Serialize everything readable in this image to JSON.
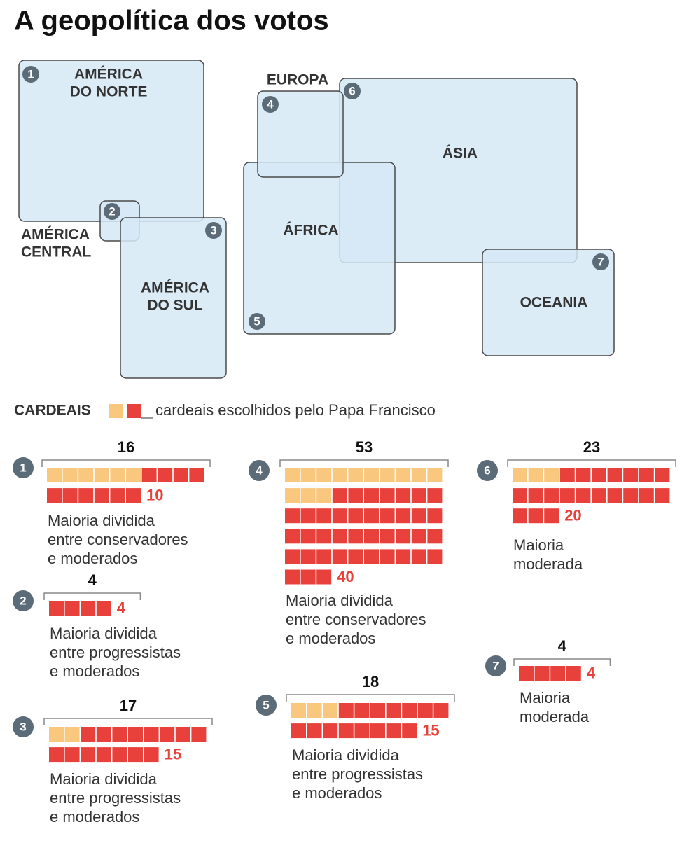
{
  "title": "A geopolítica dos votos",
  "map": {
    "regions": [
      {
        "number": 1,
        "label": [
          "AMÉRICA",
          "DO NORTE"
        ]
      },
      {
        "number": 2,
        "label": [
          "AMÉRICA",
          "CENTRAL"
        ]
      },
      {
        "number": 3,
        "label": [
          "AMÉRICA",
          "DO SUL"
        ]
      },
      {
        "number": 4,
        "label": [
          "EUROPA"
        ]
      },
      {
        "number": 5,
        "label": [
          "ÁFRICA"
        ]
      },
      {
        "number": 6,
        "label": [
          "ÁSIA"
        ]
      },
      {
        "number": 7,
        "label": [
          "OCEANIA"
        ]
      }
    ]
  },
  "legend": {
    "label": "CARDEAIS",
    "text": "cardeais escolhidos pelo Papa Francisco"
  },
  "blocks": [
    {
      "number": 1,
      "total": 16,
      "francis": 10,
      "description": [
        "Maioria dividida",
        "entre conservadores",
        "e moderados"
      ]
    },
    {
      "number": 2,
      "total": 4,
      "francis": 4,
      "description": [
        "Maioria dividida",
        "entre progressistas",
        "e moderados"
      ]
    },
    {
      "number": 3,
      "total": 17,
      "francis": 15,
      "description": [
        "Maioria dividida",
        "entre progressistas",
        "e moderados"
      ]
    },
    {
      "number": 4,
      "total": 53,
      "francis": 40,
      "description": [
        "Maioria dividida",
        "entre conservadores",
        "e moderados"
      ]
    },
    {
      "number": 5,
      "total": 18,
      "francis": 15,
      "description": [
        "Maioria dividida",
        "entre progressistas",
        "e moderados"
      ]
    },
    {
      "number": 6,
      "total": 23,
      "francis": 20,
      "description": [
        "Maioria",
        "moderada"
      ]
    },
    {
      "number": 7,
      "total": 4,
      "francis": 4,
      "description": [
        "Maioria",
        "moderada"
      ]
    }
  ]
}
